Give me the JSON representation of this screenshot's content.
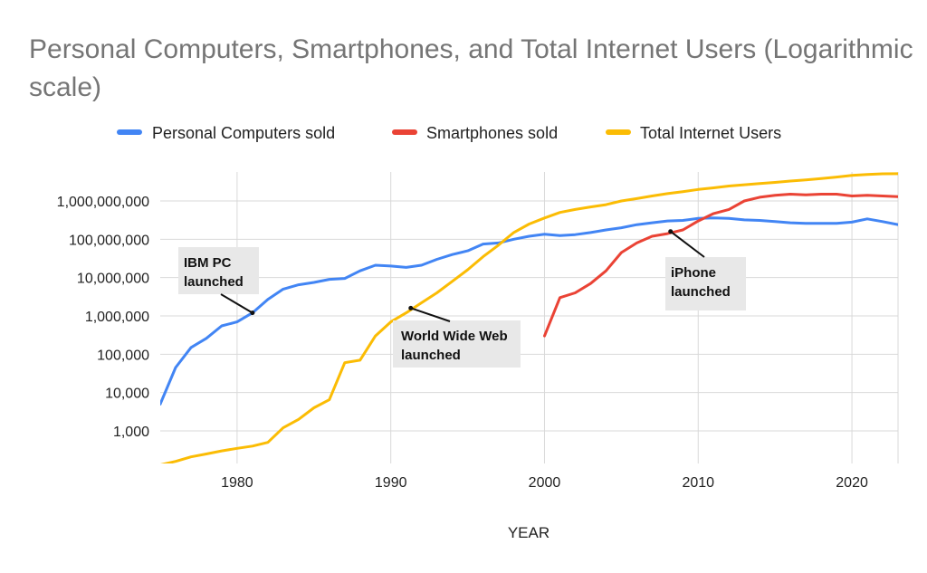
{
  "chart_data": {
    "type": "line",
    "title": "Personal Computers, Smartphones, and Total Internet Users (Logarithmic scale)",
    "xlabel": "YEAR",
    "ylabel": "",
    "yscale": "log",
    "xlim": [
      1975,
      2023
    ],
    "ylim": [
      100,
      5000000000
    ],
    "grid": true,
    "legend_position": "top",
    "x_ticks": [
      1980,
      1990,
      2000,
      2010,
      2020
    ],
    "x_tick_labels": [
      "1980",
      "1990",
      "2000",
      "2010",
      "2020"
    ],
    "y_ticks": [
      1000,
      10000,
      100000,
      1000000,
      10000000,
      100000000,
      1000000000
    ],
    "y_tick_labels": [
      "1,000",
      "10,000",
      "100,000",
      "1,000,000",
      "10,000,000",
      "100,000,000",
      "1,000,000,000"
    ],
    "series": [
      {
        "name": "Personal Computers sold",
        "color": "#4285f4",
        "points": [
          [
            1975,
            5000
          ],
          [
            1976,
            45000
          ],
          [
            1977,
            150000
          ],
          [
            1978,
            260000
          ],
          [
            1979,
            550000
          ],
          [
            1980,
            700000
          ],
          [
            1981,
            1200000
          ],
          [
            1982,
            2700000
          ],
          [
            1983,
            5000000
          ],
          [
            1984,
            6500000
          ],
          [
            1985,
            7500000
          ],
          [
            1986,
            9000000
          ],
          [
            1987,
            9500000
          ],
          [
            1988,
            15000000
          ],
          [
            1989,
            21000000
          ],
          [
            1990,
            20000000
          ],
          [
            1991,
            18500000
          ],
          [
            1992,
            21000000
          ],
          [
            1993,
            30000000
          ],
          [
            1994,
            40000000
          ],
          [
            1995,
            50000000
          ],
          [
            1996,
            75000000
          ],
          [
            1997,
            80000000
          ],
          [
            1998,
            100000000
          ],
          [
            1999,
            120000000
          ],
          [
            2000,
            135000000
          ],
          [
            2001,
            125000000
          ],
          [
            2002,
            132000000
          ],
          [
            2003,
            150000000
          ],
          [
            2004,
            175000000
          ],
          [
            2005,
            200000000
          ],
          [
            2006,
            240000000
          ],
          [
            2007,
            270000000
          ],
          [
            2008,
            300000000
          ],
          [
            2009,
            310000000
          ],
          [
            2010,
            350000000
          ],
          [
            2011,
            360000000
          ],
          [
            2012,
            350000000
          ],
          [
            2013,
            320000000
          ],
          [
            2014,
            310000000
          ],
          [
            2015,
            290000000
          ],
          [
            2016,
            270000000
          ],
          [
            2017,
            260000000
          ],
          [
            2018,
            260000000
          ],
          [
            2019,
            260000000
          ],
          [
            2020,
            280000000
          ],
          [
            2021,
            340000000
          ],
          [
            2022,
            290000000
          ],
          [
            2023,
            240000000
          ]
        ]
      },
      {
        "name": "Smartphones sold",
        "color": "#ea4335",
        "points": [
          [
            2000,
            300000
          ],
          [
            2001,
            3000000
          ],
          [
            2002,
            4000000
          ],
          [
            2003,
            7000000
          ],
          [
            2004,
            15000000
          ],
          [
            2005,
            45000000
          ],
          [
            2006,
            80000000
          ],
          [
            2007,
            120000000
          ],
          [
            2008,
            140000000
          ],
          [
            2009,
            175000000
          ],
          [
            2010,
            300000000
          ],
          [
            2011,
            470000000
          ],
          [
            2012,
            600000000
          ],
          [
            2013,
            1000000000
          ],
          [
            2014,
            1250000000
          ],
          [
            2015,
            1400000000
          ],
          [
            2016,
            1500000000
          ],
          [
            2017,
            1450000000
          ],
          [
            2018,
            1500000000
          ],
          [
            2019,
            1500000000
          ],
          [
            2020,
            1350000000
          ],
          [
            2021,
            1400000000
          ],
          [
            2022,
            1350000000
          ],
          [
            2023,
            1300000000
          ]
        ]
      },
      {
        "name": "Total Internet Users",
        "color": "#fbbc04",
        "points": [
          [
            1975,
            130
          ],
          [
            1976,
            160
          ],
          [
            1977,
            210
          ],
          [
            1978,
            250
          ],
          [
            1979,
            300
          ],
          [
            1980,
            350
          ],
          [
            1981,
            400
          ],
          [
            1982,
            500
          ],
          [
            1983,
            1200
          ],
          [
            1984,
            2000
          ],
          [
            1985,
            4000
          ],
          [
            1986,
            6500
          ],
          [
            1987,
            60000
          ],
          [
            1988,
            70000
          ],
          [
            1989,
            300000
          ],
          [
            1990,
            700000
          ],
          [
            1991,
            1200000
          ],
          [
            1992,
            2200000
          ],
          [
            1993,
            4000000
          ],
          [
            1994,
            8000000
          ],
          [
            1995,
            16000000
          ],
          [
            1996,
            35000000
          ],
          [
            1997,
            70000000
          ],
          [
            1998,
            150000000
          ],
          [
            1999,
            250000000
          ],
          [
            2000,
            360000000
          ],
          [
            2001,
            500000000
          ],
          [
            2002,
            600000000
          ],
          [
            2003,
            700000000
          ],
          [
            2004,
            800000000
          ],
          [
            2005,
            1000000000
          ],
          [
            2006,
            1150000000
          ],
          [
            2007,
            1350000000
          ],
          [
            2008,
            1550000000
          ],
          [
            2009,
            1750000000
          ],
          [
            2010,
            2000000000
          ],
          [
            2011,
            2200000000
          ],
          [
            2012,
            2450000000
          ],
          [
            2013,
            2650000000
          ],
          [
            2014,
            2850000000
          ],
          [
            2015,
            3050000000
          ],
          [
            2016,
            3300000000
          ],
          [
            2017,
            3550000000
          ],
          [
            2018,
            3850000000
          ],
          [
            2019,
            4200000000
          ],
          [
            2020,
            4650000000
          ],
          [
            2021,
            4900000000
          ],
          [
            2022,
            5100000000
          ],
          [
            2023,
            5150000000
          ]
        ]
      }
    ],
    "annotations": [
      {
        "lines": [
          "IBM PC",
          "launched"
        ],
        "x": 1981,
        "y": 1200000
      },
      {
        "lines": [
          "World Wide Web",
          "launched"
        ],
        "x": 1991.3,
        "y": 1600000
      },
      {
        "lines": [
          "iPhone",
          "launched"
        ],
        "x": 2008.2,
        "y": 160000000
      }
    ]
  }
}
